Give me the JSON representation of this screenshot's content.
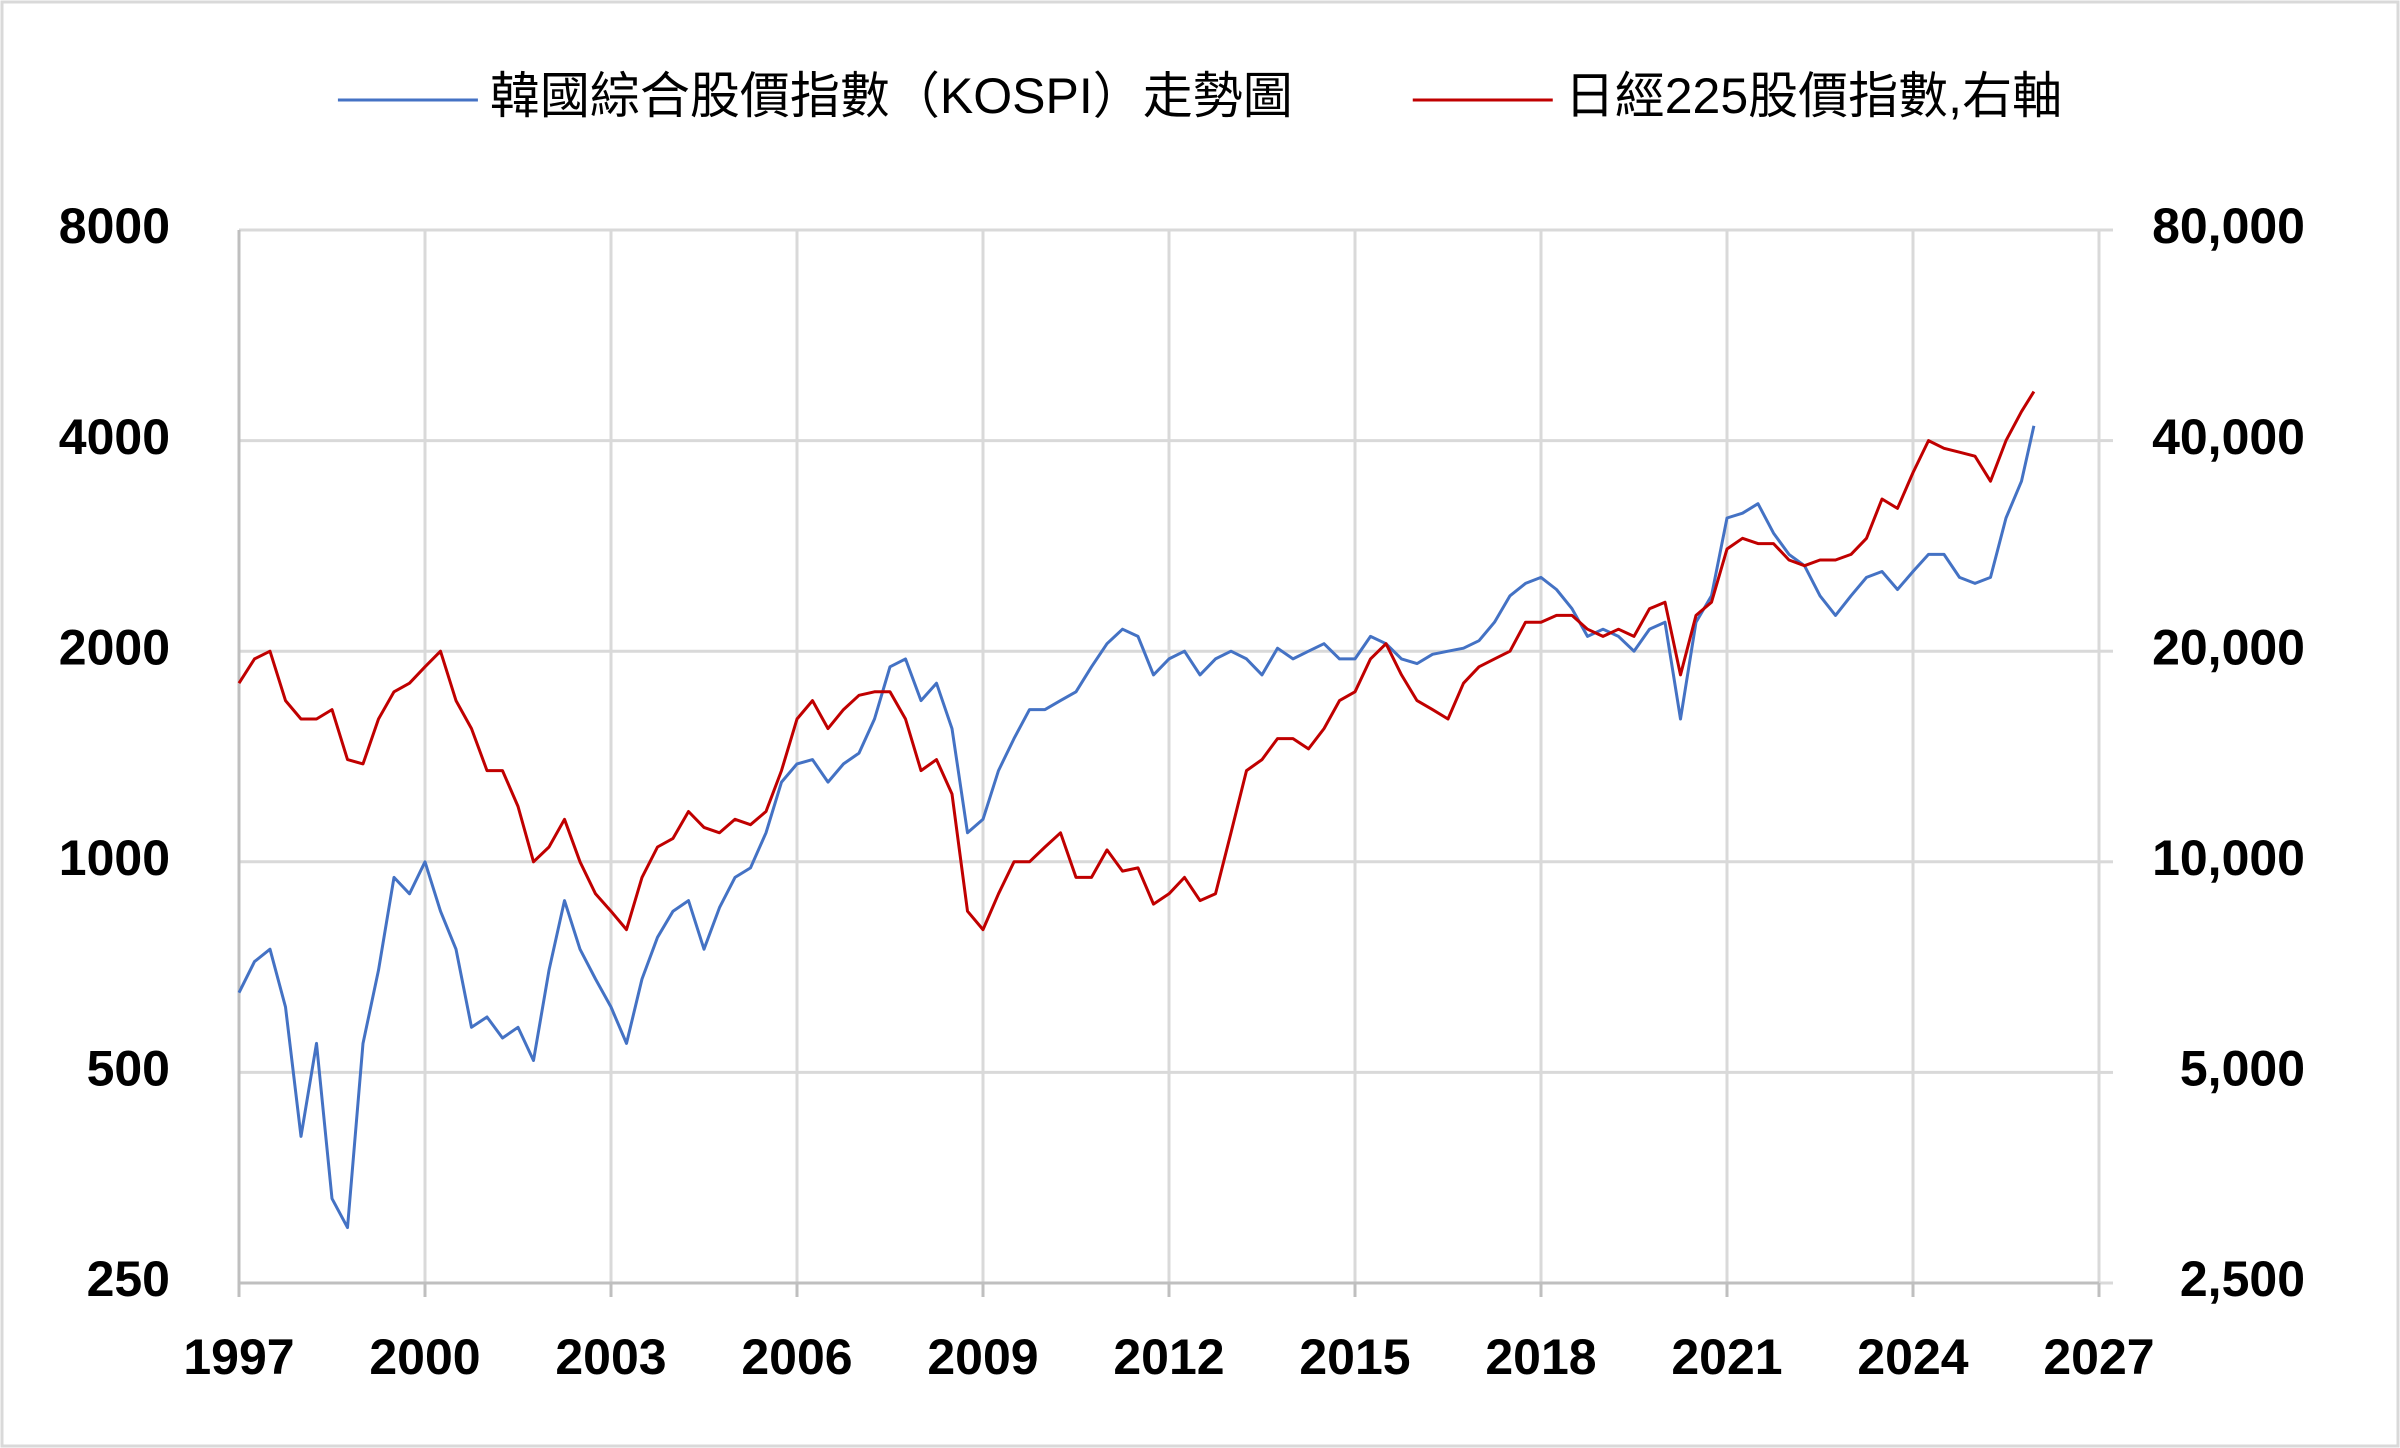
{
  "chart_data": {
    "type": "line",
    "log_scale": true,
    "grid": true,
    "legend": "top",
    "x": [
      1997.0,
      1997.25,
      1997.5,
      1997.75,
      1998.0,
      1998.25,
      1998.5,
      1998.75,
      1999.0,
      1999.25,
      1999.5,
      1999.75,
      2000.0,
      2000.25,
      2000.5,
      2000.75,
      2001.0,
      2001.25,
      2001.5,
      2001.75,
      2002.0,
      2002.25,
      2002.5,
      2002.75,
      2003.0,
      2003.25,
      2003.5,
      2003.75,
      2004.0,
      2004.25,
      2004.5,
      2004.75,
      2005.0,
      2005.25,
      2005.5,
      2005.75,
      2006.0,
      2006.25,
      2006.5,
      2006.75,
      2007.0,
      2007.25,
      2007.5,
      2007.75,
      2008.0,
      2008.25,
      2008.5,
      2008.75,
      2009.0,
      2009.25,
      2009.5,
      2009.75,
      2010.0,
      2010.25,
      2010.5,
      2010.75,
      2011.0,
      2011.25,
      2011.5,
      2011.75,
      2012.0,
      2012.25,
      2012.5,
      2012.75,
      2013.0,
      2013.25,
      2013.5,
      2013.75,
      2014.0,
      2014.25,
      2014.5,
      2014.75,
      2015.0,
      2015.25,
      2015.5,
      2015.75,
      2016.0,
      2016.25,
      2016.5,
      2016.75,
      2017.0,
      2017.25,
      2017.5,
      2017.75,
      2018.0,
      2018.25,
      2018.5,
      2018.75,
      2019.0,
      2019.25,
      2019.5,
      2019.75,
      2020.0,
      2020.25,
      2020.5,
      2020.75,
      2021.0,
      2021.25,
      2021.5,
      2021.75,
      2022.0,
      2022.25,
      2022.5,
      2022.75,
      2023.0,
      2023.25,
      2023.5,
      2023.75,
      2024.0,
      2024.25,
      2024.5,
      2024.75,
      2025.0,
      2025.25,
      2025.5,
      2025.75,
      2025.95
    ],
    "series": [
      {
        "name": "韓國綜合股價指數（KOSPI）走勢圖",
        "color": "#4472c4",
        "values": [
          650,
          720,
          750,
          620,
          405,
          550,
          330,
          300,
          550,
          700,
          950,
          900,
          1000,
          850,
          750,
          580,
          600,
          560,
          580,
          520,
          700,
          880,
          750,
          680,
          620,
          550,
          680,
          780,
          850,
          880,
          750,
          860,
          950,
          980,
          1100,
          1300,
          1380,
          1400,
          1300,
          1380,
          1430,
          1600,
          1900,
          1950,
          1700,
          1800,
          1550,
          1100,
          1150,
          1350,
          1500,
          1650,
          1650,
          1700,
          1750,
          1900,
          2050,
          2150,
          2100,
          1850,
          1950,
          2000,
          1850,
          1950,
          2000,
          1950,
          1850,
          2020,
          1950,
          2000,
          2050,
          1950,
          1950,
          2100,
          2050,
          1950,
          1920,
          1980,
          2000,
          2020,
          2070,
          2200,
          2400,
          2500,
          2550,
          2450,
          2300,
          2100,
          2150,
          2100,
          2000,
          2150,
          2200,
          1600,
          2200,
          2400,
          3100,
          3150,
          3250,
          2950,
          2750,
          2650,
          2400,
          2250,
          2400,
          2550,
          2600,
          2450,
          2600,
          2750,
          2750,
          2550,
          2500,
          2550,
          3100,
          3500,
          4200
        ]
      },
      {
        "name": "日經225股價指數,右軸",
        "color": "#c00000",
        "axis": "y2",
        "values": [
          18000,
          19500,
          20000,
          17000,
          16000,
          16000,
          16500,
          14000,
          13800,
          16000,
          17500,
          18000,
          19000,
          20000,
          17000,
          15500,
          13500,
          13500,
          12000,
          10000,
          10500,
          11500,
          10000,
          9000,
          8500,
          8000,
          9500,
          10500,
          10800,
          11800,
          11200,
          11000,
          11500,
          11300,
          11800,
          13500,
          16000,
          17000,
          15500,
          16500,
          17300,
          17500,
          17500,
          16000,
          13500,
          14000,
          12500,
          8500,
          8000,
          9000,
          10000,
          10000,
          10500,
          11000,
          9500,
          9500,
          10400,
          9700,
          9800,
          8700,
          9000,
          9500,
          8800,
          9000,
          11000,
          13500,
          14000,
          15000,
          15000,
          14500,
          15500,
          17000,
          17500,
          19500,
          20500,
          18500,
          17000,
          16500,
          16000,
          18000,
          19000,
          19500,
          20000,
          22000,
          22000,
          22500,
          22500,
          21500,
          21000,
          21500,
          21000,
          23000,
          23500,
          18500,
          22500,
          23500,
          28000,
          29000,
          28500,
          28500,
          27000,
          26500,
          27000,
          27000,
          27500,
          29000,
          33000,
          32000,
          36000,
          40000,
          39000,
          38500,
          38000,
          35000,
          40000,
          44000,
          47000
        ]
      }
    ],
    "xlim": [
      1997,
      2027
    ],
    "xticks": [
      1997,
      2000,
      2003,
      2006,
      2009,
      2012,
      2015,
      2018,
      2021,
      2024,
      2027
    ],
    "ylim": [
      250,
      8000
    ],
    "yticks": [
      250,
      500,
      1000,
      2000,
      4000,
      8000
    ],
    "y2lim": [
      2500,
      80000
    ],
    "y2ticks": [
      {
        "value": 2500,
        "label": "2,500"
      },
      {
        "value": 5000,
        "label": "5,000"
      },
      {
        "value": 10000,
        "label": "10,000"
      },
      {
        "value": 20000,
        "label": "20,000"
      },
      {
        "value": 40000,
        "label": "40,000"
      },
      {
        "value": 80000,
        "label": "80,000"
      }
    ]
  }
}
